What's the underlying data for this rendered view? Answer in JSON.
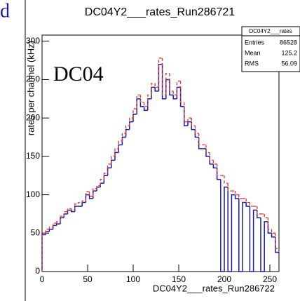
{
  "chart_data": {
    "type": "histogram",
    "title": "DC04Y2___rates_Run286721",
    "x_label": "DC04Y2___rates_Run286722",
    "y_label": "rates per channel (kHz)",
    "annotations": [
      "DC04",
      "d"
    ],
    "bins": [
      0,
      4,
      8,
      12,
      16,
      20,
      24,
      28,
      32,
      36,
      40,
      44,
      48,
      52,
      56,
      60,
      64,
      68,
      72,
      76,
      80,
      84,
      88,
      92,
      96,
      100,
      104,
      108,
      112,
      116,
      120,
      124,
      128,
      132,
      136,
      140,
      144,
      148,
      152,
      156,
      160,
      164,
      168,
      172,
      176,
      180,
      184,
      188,
      192,
      196,
      200,
      204,
      208,
      212,
      216,
      220,
      224,
      228,
      232,
      236,
      240,
      244,
      248,
      252,
      256,
      260
    ],
    "series": [
      {
        "color": "#1a1aa6",
        "values": [
          48,
          52,
          55,
          60,
          62,
          70,
          75,
          80,
          78,
          85,
          85,
          90,
          100,
          95,
          105,
          110,
          115,
          125,
          135,
          145,
          155,
          165,
          175,
          185,
          195,
          205,
          225,
          215,
          210,
          225,
          240,
          235,
          270,
          225,
          250,
          230,
          225,
          240,
          215,
          190,
          195,
          185,
          175,
          160,
          160,
          150,
          140,
          135,
          120,
          0,
          110,
          0,
          100,
          95,
          0,
          90,
          85,
          0,
          80,
          70,
          0,
          65,
          50,
          45,
          25
        ]
      },
      {
        "color": "#e8322a",
        "values": [
          50,
          55,
          58,
          63,
          65,
          72,
          78,
          82,
          80,
          88,
          90,
          92,
          104,
          98,
          108,
          112,
          120,
          128,
          140,
          150,
          160,
          170,
          180,
          190,
          200,
          212,
          230,
          220,
          215,
          230,
          245,
          240,
          278,
          230,
          258,
          235,
          230,
          248,
          220,
          195,
          200,
          190,
          180,
          165,
          165,
          155,
          145,
          140,
          125,
          125,
          115,
          105,
          105,
          100,
          95,
          95,
          90,
          85,
          85,
          75,
          75,
          70,
          55,
          50,
          30
        ]
      }
    ],
    "xlim": [
      0,
      260
    ],
    "ylim": [
      0,
      308
    ],
    "xticks": [
      0,
      50,
      100,
      150,
      200,
      250
    ],
    "yticks": [
      0,
      50,
      100,
      150,
      200,
      250,
      300
    ],
    "stats_box": {
      "title": "DC04Y2___rates",
      "rows": [
        [
          "Entries",
          86528
        ],
        [
          "Mean",
          125.2
        ],
        [
          "RMS",
          56.09
        ]
      ]
    }
  }
}
